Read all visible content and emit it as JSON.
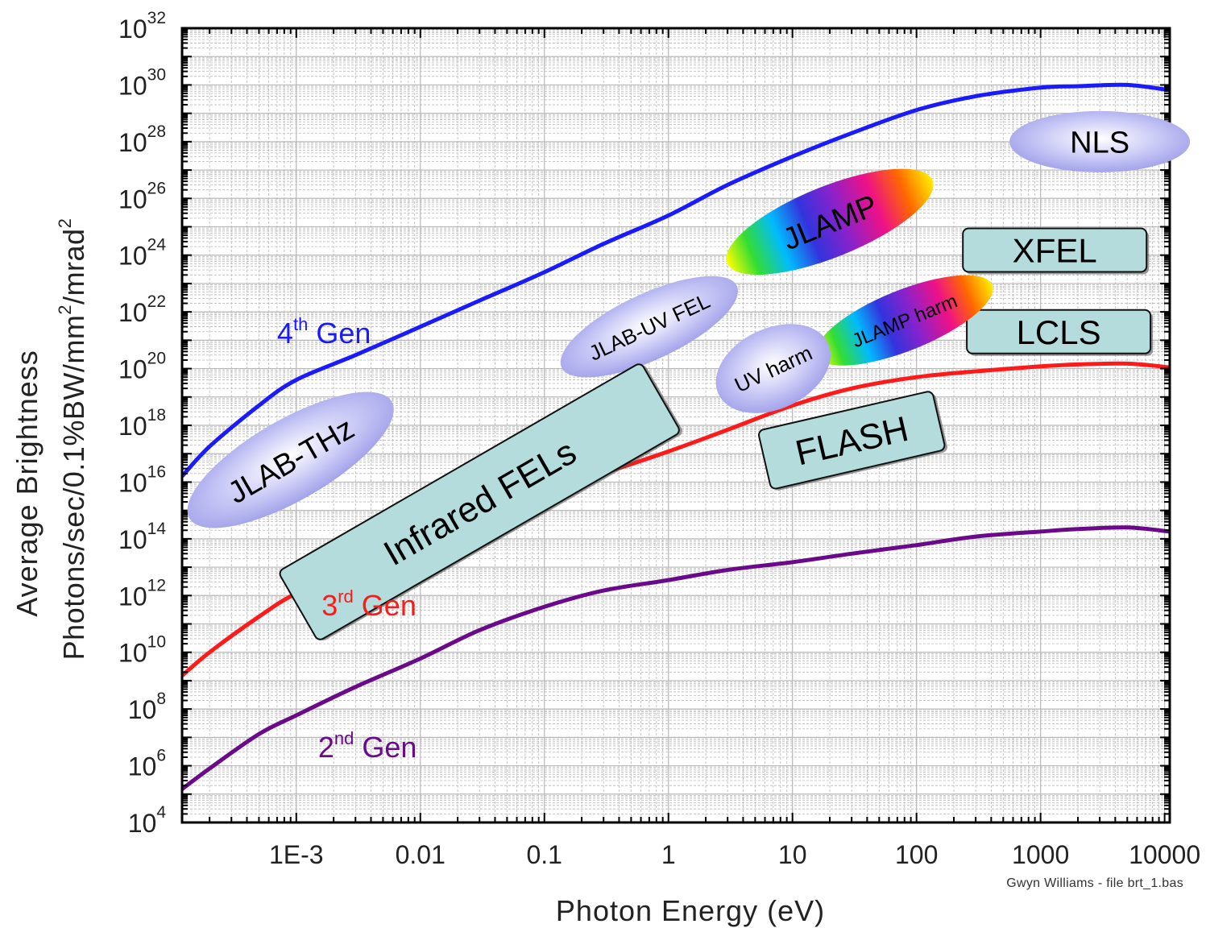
{
  "chart_data": {
    "type": "line",
    "xlabel": "Photon Energy (eV)",
    "ylabel_line1": "Average Brightness",
    "ylabel_line2_parts": [
      "Photons/sec/0.1%BW/mm",
      "2",
      "/mrad",
      "2"
    ],
    "x_scale": "log",
    "y_scale": "log",
    "xlim": [
      0.00012,
      11000
    ],
    "ylim": [
      10000.0,
      1e+32
    ],
    "x_tick_values": [
      0.001,
      0.01,
      0.1,
      1,
      10,
      100,
      1000,
      10000
    ],
    "x_tick_labels": [
      "1E-3",
      "0.01",
      "0.1",
      "1",
      "10",
      "100",
      "1000",
      "10000"
    ],
    "y_tick_mantissa": "10",
    "y_tick_exponents": [
      "4",
      "6",
      "8",
      "10",
      "12",
      "14",
      "16",
      "18",
      "20",
      "22",
      "24",
      "26",
      "28",
      "30",
      "32"
    ],
    "grid": true,
    "series": [
      {
        "label": "4th Gen",
        "label_base": "4",
        "label_sup": "th",
        "label_rest": " Gen",
        "color": "#1a1aff",
        "x": [
          0.00012,
          0.0002,
          0.0005,
          0.001,
          0.003,
          0.01,
          0.03,
          0.1,
          0.3,
          1,
          3,
          10,
          30,
          100,
          300,
          1000,
          2000,
          5000,
          11000
        ],
        "y": [
          1.6e+16,
          1.8e+17,
          5e+18,
          4e+19,
          3e+20,
          3e+21,
          2.5e+22,
          2.5e+23,
          2.5e+24,
          2.5e+25,
          3e+26,
          3e+27,
          2e+28,
          1.3e+29,
          4e+29,
          8e+29,
          9e+29,
          1e+30,
          6.5e+29
        ]
      },
      {
        "label": "3rd Gen",
        "label_base": "3",
        "label_sup": "rd",
        "label_rest": " Gen",
        "color": "#ff1a1a",
        "x": [
          0.00012,
          0.0002,
          0.0005,
          0.001,
          0.003,
          0.01,
          0.03,
          0.1,
          0.3,
          1,
          3,
          10,
          30,
          100,
          300,
          1000,
          2000,
          5000,
          11000
        ],
        "y": [
          1500000000.0,
          10000000000.0,
          180000000000.0,
          1200000000000.0,
          10000000000000.0,
          100000000000000.0,
          500000000000000.0,
          3500000000000000.0,
          2e+16,
          1.2e+17,
          7e+17,
          5e+18,
          2e+19,
          5e+19,
          8e+19,
          1.2e+20,
          1.4e+20,
          1.5e+20,
          1.1e+20
        ]
      },
      {
        "label": "2nd Gen",
        "label_base": "2",
        "label_sup": "nd",
        "label_rest": " Gen",
        "color": "#6a0a8a",
        "x": [
          0.00012,
          0.0002,
          0.0005,
          0.001,
          0.003,
          0.01,
          0.03,
          0.1,
          0.3,
          1,
          3,
          10,
          30,
          100,
          300,
          1000,
          2000,
          5000,
          11000
        ],
        "y": [
          150000.0,
          800000.0,
          13000000.0,
          60000000.0,
          600000000.0,
          6000000000.0,
          60000000000.0,
          400000000000.0,
          1500000000000.0,
          3500000000000.0,
          8000000000000.0,
          15000000000000.0,
          30000000000000.0,
          60000000000000.0,
          120000000000000.0,
          180000000000000.0,
          220000000000000.0,
          250000000000000.0,
          180000000000000.0
        ]
      }
    ],
    "annotations": [
      {
        "text": "NLS",
        "style": "ellipse-lavender",
        "x": 3000,
        "y": 1e+28,
        "angle": 0,
        "font": 38,
        "color": "#000000"
      },
      {
        "text": "XFEL",
        "style": "box-teal",
        "x": 1300,
        "y": 1.5e+24,
        "angle": 0,
        "font": 42,
        "color": "#000000"
      },
      {
        "text": "LCLS",
        "style": "box-teal",
        "x": 1400,
        "y": 2e+21,
        "angle": 0,
        "font": 42,
        "color": "#000000"
      },
      {
        "text": "JLAMP",
        "style": "ellipse-rainbow",
        "x": 20,
        "y": 1.5e+25,
        "angle": -22,
        "font": 38,
        "color": "#000000"
      },
      {
        "text": "JLAMP harm",
        "style": "ellipse-rainbow",
        "x": 80,
        "y": 5e+21,
        "angle": -22,
        "font": 24,
        "color": "#000000"
      },
      {
        "text": "JLAB-UV FEL",
        "style": "ellipse-lavender",
        "x": 0.7,
        "y": 3e+21,
        "angle": -25,
        "font": 26,
        "color": "#000000"
      },
      {
        "text": "UV harm",
        "style": "ellipse-lavender",
        "x": 7,
        "y": 1e+20,
        "angle": -25,
        "font": 26,
        "color": "#000000"
      },
      {
        "text": "JLAB-THz",
        "style": "ellipse-lavender",
        "x": 0.0009,
        "y": 6e+16,
        "angle": -30,
        "font": 38,
        "color": "#000000"
      },
      {
        "text": "Infrared FELs",
        "style": "box-teal",
        "x": 0.03,
        "y": 2000000000000000.0,
        "angle": -30,
        "font": 44,
        "color": "#000000"
      },
      {
        "text": "FLASH",
        "style": "box-teal",
        "x": 30,
        "y": 3e+17,
        "angle": -13,
        "font": 44,
        "color": "#000000"
      }
    ],
    "series_label_positions": [
      {
        "series": 0,
        "x": 0.0007,
        "y": 8e+20
      },
      {
        "series": 1,
        "x": 0.0016,
        "y": 200000000000.0
      },
      {
        "series": 2,
        "x": 0.0015,
        "y": 2000000.0
      }
    ]
  },
  "credit": "Gwyn Williams - file brt_1.bas",
  "colors": {
    "teal_box": "#b4dcdc",
    "lavender": "#b2b2f0",
    "grid": "#b8b8b8"
  }
}
